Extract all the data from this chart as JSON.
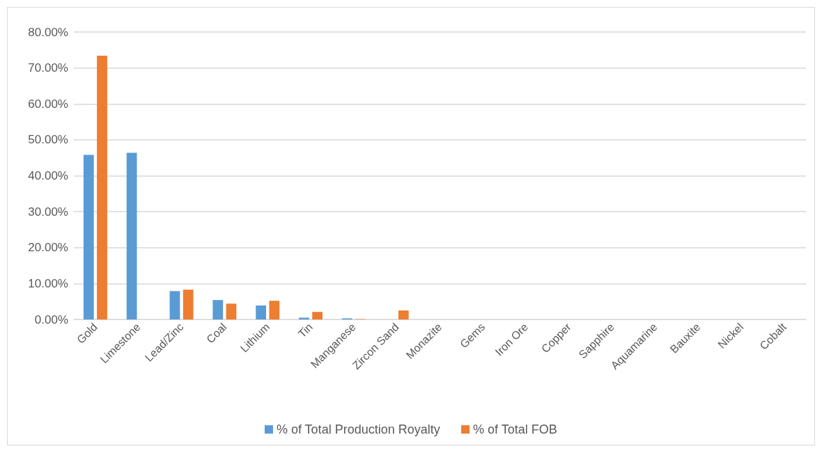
{
  "chart_data": {
    "type": "bar",
    "categories": [
      "Gold",
      "Limestone",
      "Lead/Zinc",
      "Coal",
      "Lithium",
      "Tin",
      "Manganese",
      "Zircon Sand",
      "Monazite",
      "Gems",
      "Iron Ore",
      "Copper",
      "Sapphire",
      "Aquamarine",
      "Bauxite",
      "Nickel",
      "Cobalt"
    ],
    "series": [
      {
        "name": "% of Total Production Royalty",
        "color": "#5b9bd5",
        "values": [
          45.8,
          46.4,
          7.9,
          5.4,
          3.9,
          0.5,
          0.3,
          0,
          0,
          0,
          0,
          0,
          0,
          0,
          0,
          0,
          0
        ]
      },
      {
        "name": "% of Total FOB",
        "color": "#ed7d31",
        "values": [
          73.4,
          0,
          8.3,
          4.4,
          5.2,
          2.1,
          0.1,
          2.5,
          0,
          0,
          0,
          0,
          0,
          0,
          0,
          0,
          0
        ]
      }
    ],
    "ylim": [
      0,
      80
    ],
    "yticks": [
      {
        "value": 0,
        "label": "0.00%"
      },
      {
        "value": 10,
        "label": "10.00%"
      },
      {
        "value": 20,
        "label": "20.00%"
      },
      {
        "value": 30,
        "label": "30.00%"
      },
      {
        "value": 40,
        "label": "40.00%"
      },
      {
        "value": 50,
        "label": "50.00%"
      },
      {
        "value": 60,
        "label": "60.00%"
      },
      {
        "value": 70,
        "label": "70.00%"
      },
      {
        "value": 80,
        "label": "80.00%"
      }
    ],
    "grid": "y",
    "legend": "bottom"
  }
}
